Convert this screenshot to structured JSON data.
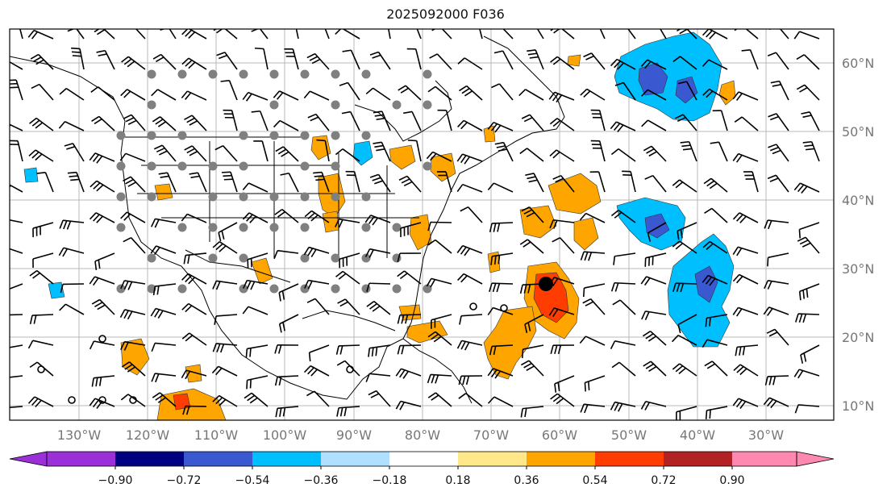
{
  "title": "2025092000 F036",
  "map": {
    "lon_labels": [
      "130°W",
      "120°W",
      "110°W",
      "100°W",
      "90°W",
      "80°W",
      "70°W",
      "60°W",
      "50°W",
      "40°W",
      "30°W"
    ],
    "lat_labels": [
      "60°N",
      "50°N",
      "40°N",
      "30°N",
      "20°N",
      "10°N"
    ]
  },
  "colorbar": {
    "tick_labels": [
      "−0.90",
      "−0.72",
      "−0.54",
      "−0.36",
      "−0.18",
      "0.18",
      "0.36",
      "0.54",
      "0.72",
      "0.90"
    ],
    "colors": [
      "#9b30d9",
      "#000080",
      "#3a58d0",
      "#00bfff",
      "#b0e0ff",
      "#ffffff",
      "#ffe88a",
      "#ffa500",
      "#ff3d00",
      "#b22222",
      "#ff88b0"
    ]
  },
  "colors": {
    "orange": "#ffa500",
    "red_orange": "#ff3d00",
    "deep_sky": "#00bfff",
    "royal_blue": "#3a58d0",
    "gray_dot": "#808080",
    "axis_label": "#777777"
  }
}
